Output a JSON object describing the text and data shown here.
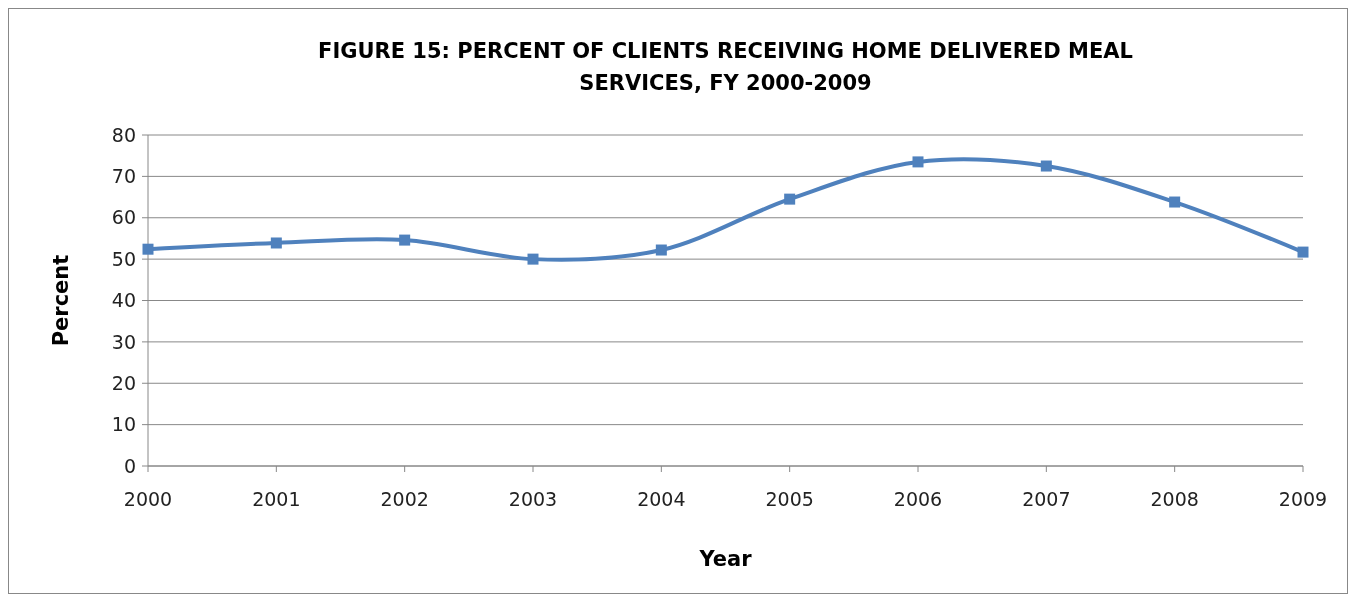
{
  "chart_data": {
    "type": "line",
    "title": "FIGURE 15: PERCENT OF CLIENTS RECEIVING HOME DELIVERED MEAL SERVICES, FY 2000-2009",
    "xlabel": "Year",
    "ylabel": "Percent",
    "x": [
      2000,
      2001,
      2002,
      2003,
      2004,
      2005,
      2006,
      2007,
      2008,
      2009
    ],
    "series": [
      {
        "color": "#4f81bd",
        "values": [
          52.4,
          53.9,
          54.6,
          50.0,
          52.2,
          64.5,
          73.5,
          72.5,
          63.8,
          51.7
        ]
      }
    ],
    "xlim": [
      2000,
      2009
    ],
    "xticks": [
      2000,
      2001,
      2002,
      2003,
      2004,
      2005,
      2006,
      2007,
      2008,
      2009
    ],
    "ylim": [
      0,
      80
    ],
    "yticks": [
      0,
      10,
      20,
      30,
      40,
      50,
      60,
      70,
      80
    ],
    "grid": "y",
    "marker": "square",
    "line_style": "solid"
  }
}
